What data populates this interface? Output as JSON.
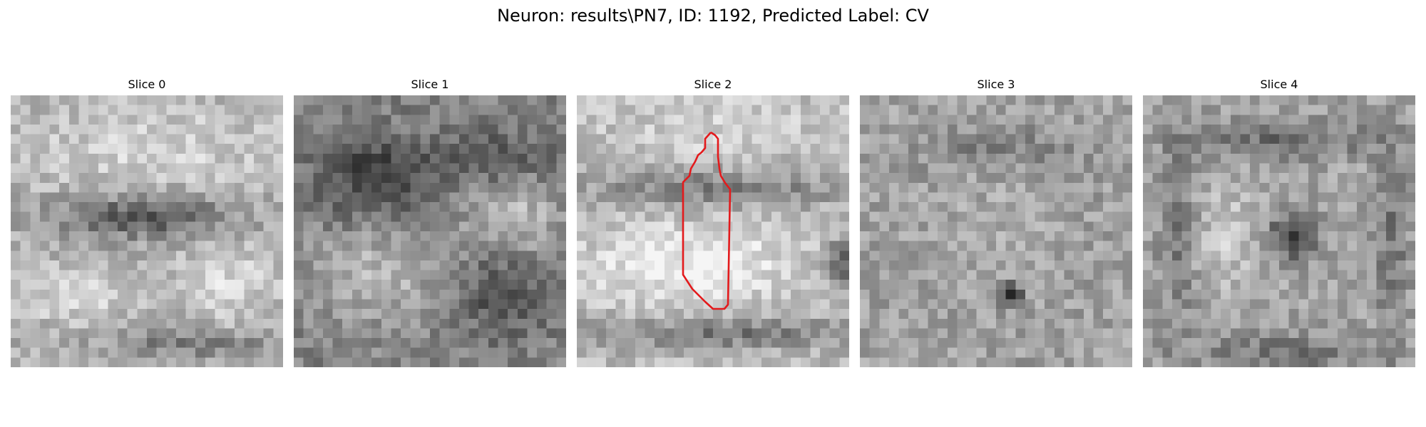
{
  "title": "Neuron: results\\PN7, ID: 1192, Predicted Label: CV",
  "panels": [
    {
      "label": "Slice 0"
    },
    {
      "label": "Slice 1"
    },
    {
      "label": "Slice 2"
    },
    {
      "label": "Slice 3"
    },
    {
      "label": "Slice 4"
    }
  ],
  "contour_color": "#e31a1c",
  "colormap": "grayscale"
}
